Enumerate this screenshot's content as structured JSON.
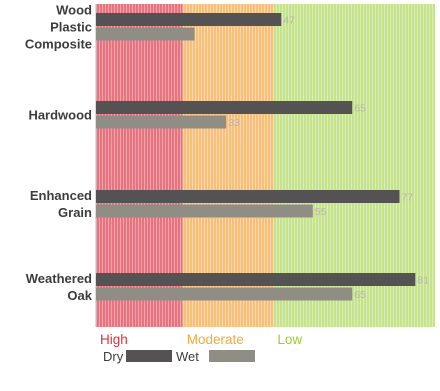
{
  "chart_data": {
    "type": "bar",
    "orientation": "horizontal",
    "categories": [
      "Wood Plastic Composite",
      "Hardwood",
      "Enhanced Grain",
      "Weathered Oak"
    ],
    "category_lines": [
      [
        "Wood",
        "Plastic",
        "Composite"
      ],
      [
        "Hardwood"
      ],
      [
        "Enhanced",
        "Grain"
      ],
      [
        "Weathered",
        "Oak"
      ]
    ],
    "series": [
      {
        "name": "Dry",
        "values": [
          47,
          65,
          77,
          81
        ],
        "color": "#545252"
      },
      {
        "name": "Wet",
        "values": [
          25,
          33,
          55,
          65
        ],
        "color": "#908d84"
      }
    ],
    "data_labels": [
      [
        "47",
        "65",
        "77",
        "81"
      ],
      [
        "",
        "33",
        "55",
        "65"
      ]
    ],
    "xlim": [
      0,
      86
    ],
    "bands": [
      {
        "label": "High",
        "from": 0,
        "to": 22,
        "color": "#e8737f",
        "text_color": "#e0303f"
      },
      {
        "label": "Moderate",
        "from": 22,
        "to": 45,
        "color": "#f7c07a",
        "text_color": "#f4a742"
      },
      {
        "label": "Low",
        "from": 45,
        "to": 86,
        "color": "#c5e38d",
        "text_color": "#9acd32"
      }
    ],
    "legend_position": "bottom-left",
    "grid": false
  }
}
